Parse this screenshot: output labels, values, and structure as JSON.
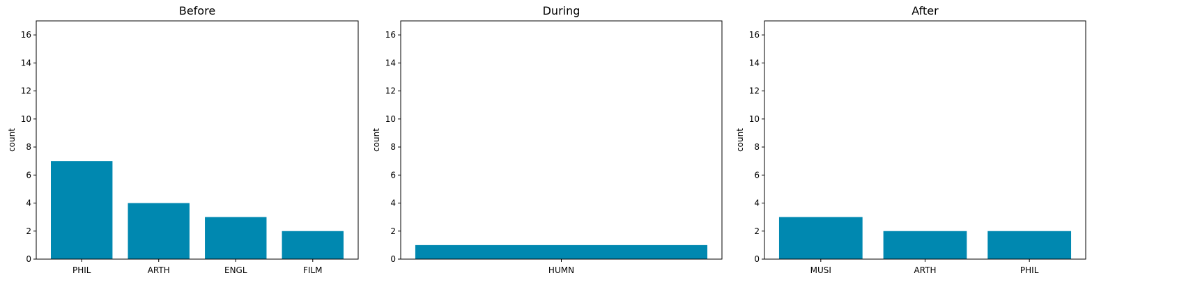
{
  "chart_data": [
    {
      "type": "bar",
      "title": "Before",
      "ylabel": "count",
      "xlabel": "",
      "categories": [
        "PHIL",
        "ARTH",
        "ENGL",
        "FILM"
      ],
      "values": [
        7,
        4,
        3,
        2
      ],
      "ylim": [
        0,
        17
      ],
      "yticks": [
        "0",
        "2",
        "4",
        "6",
        "8",
        "10",
        "12",
        "14",
        "16"
      ],
      "color": "#0088b0",
      "grid": false
    },
    {
      "type": "bar",
      "title": "During",
      "ylabel": "count",
      "xlabel": "",
      "categories": [
        "HUMN"
      ],
      "values": [
        1
      ],
      "ylim": [
        0,
        17
      ],
      "yticks": [
        "0",
        "2",
        "4",
        "6",
        "8",
        "10",
        "12",
        "14",
        "16"
      ],
      "color": "#0088b0",
      "grid": false
    },
    {
      "type": "bar",
      "title": "After",
      "ylabel": "count",
      "xlabel": "",
      "categories": [
        "MUSI",
        "ARTH",
        "PHIL"
      ],
      "values": [
        3,
        2,
        2
      ],
      "ylim": [
        0,
        17
      ],
      "yticks": [
        "0",
        "2",
        "4",
        "6",
        "8",
        "10",
        "12",
        "14",
        "16"
      ],
      "color": "#0088b0",
      "grid": false
    }
  ]
}
